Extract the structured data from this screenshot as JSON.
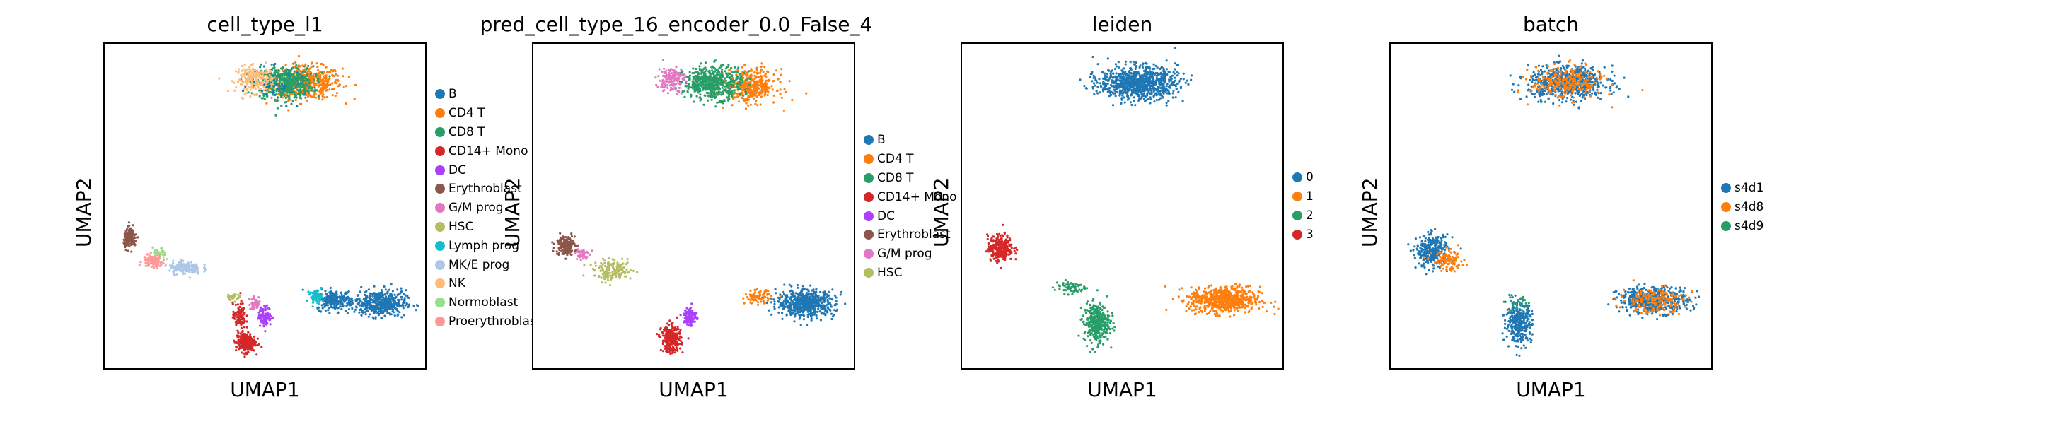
{
  "chart_data": [
    {
      "type": "scatter",
      "title": "cell_type_l1",
      "xlabel": "UMAP1",
      "ylabel": "UMAP2",
      "grid": false,
      "legend": "right",
      "categories": [
        {
          "name": "B",
          "color": "#1f77b4"
        },
        {
          "name": "CD4 T",
          "color": "#ff7f0e"
        },
        {
          "name": "CD8 T",
          "color": "#279e68"
        },
        {
          "name": "CD14+ Mono",
          "color": "#d62728"
        },
        {
          "name": "DC",
          "color": "#aa40fc"
        },
        {
          "name": "Erythroblast",
          "color": "#8c564b"
        },
        {
          "name": "G/M prog",
          "color": "#e377c2"
        },
        {
          "name": "HSC",
          "color": "#b5bd61"
        },
        {
          "name": "Lymph prog",
          "color": "#17becf"
        },
        {
          "name": "MK/E prog",
          "color": "#aec7e8"
        },
        {
          "name": "NK",
          "color": "#ffbb78"
        },
        {
          "name": "Normoblast",
          "color": "#98df8a"
        },
        {
          "name": "Proerythroblast",
          "color": "#ff9896"
        }
      ],
      "clusters": [
        {
          "category": "CD4 T",
          "x": 0.63,
          "y": 0.88,
          "sx": 0.11,
          "sy": 0.05,
          "n": 500
        },
        {
          "category": "CD8 T",
          "x": 0.56,
          "y": 0.88,
          "sx": 0.09,
          "sy": 0.05,
          "n": 520
        },
        {
          "category": "NK",
          "x": 0.47,
          "y": 0.89,
          "sx": 0.06,
          "sy": 0.04,
          "n": 220
        },
        {
          "category": "B",
          "x": 0.55,
          "y": 0.87,
          "sx": 0.09,
          "sy": 0.05,
          "n": 40
        },
        {
          "category": "B",
          "x": 0.86,
          "y": 0.2,
          "sx": 0.08,
          "sy": 0.04,
          "n": 450
        },
        {
          "category": "B",
          "x": 0.72,
          "y": 0.21,
          "sx": 0.06,
          "sy": 0.03,
          "n": 230
        },
        {
          "category": "Lymph prog",
          "x": 0.66,
          "y": 0.22,
          "sx": 0.02,
          "sy": 0.02,
          "n": 60
        },
        {
          "category": "CD14+ Mono",
          "x": 0.44,
          "y": 0.08,
          "sx": 0.03,
          "sy": 0.03,
          "n": 250
        },
        {
          "category": "CD14+ Mono",
          "x": 0.42,
          "y": 0.16,
          "sx": 0.02,
          "sy": 0.04,
          "n": 90
        },
        {
          "category": "DC",
          "x": 0.5,
          "y": 0.16,
          "sx": 0.02,
          "sy": 0.03,
          "n": 120
        },
        {
          "category": "G/M prog",
          "x": 0.47,
          "y": 0.2,
          "sx": 0.02,
          "sy": 0.02,
          "n": 40
        },
        {
          "category": "HSC",
          "x": 0.4,
          "y": 0.22,
          "sx": 0.02,
          "sy": 0.01,
          "n": 30
        },
        {
          "category": "MK/E prog",
          "x": 0.25,
          "y": 0.31,
          "sx": 0.05,
          "sy": 0.02,
          "n": 150
        },
        {
          "category": "Normoblast",
          "x": 0.17,
          "y": 0.35,
          "sx": 0.02,
          "sy": 0.02,
          "n": 40
        },
        {
          "category": "Erythroblast",
          "x": 0.08,
          "y": 0.4,
          "sx": 0.02,
          "sy": 0.03,
          "n": 140
        },
        {
          "category": "Proerythroblast",
          "x": 0.15,
          "y": 0.33,
          "sx": 0.03,
          "sy": 0.02,
          "n": 120
        }
      ]
    },
    {
      "type": "scatter",
      "title": "pred_cell_type_16_encoder_0.0_False_4",
      "xlabel": "UMAP1",
      "ylabel": "UMAP2",
      "grid": false,
      "legend": "right",
      "categories": [
        {
          "name": "B",
          "color": "#1f77b4"
        },
        {
          "name": "CD4 T",
          "color": "#ff7f0e"
        },
        {
          "name": "CD8 T",
          "color": "#279e68"
        },
        {
          "name": "CD14+ Mono",
          "color": "#d62728"
        },
        {
          "name": "DC",
          "color": "#aa40fc"
        },
        {
          "name": "Erythroblast",
          "color": "#8c564b"
        },
        {
          "name": "G/M prog",
          "color": "#e377c2"
        },
        {
          "name": "HSC",
          "color": "#b5bd61"
        }
      ],
      "clusters": [
        {
          "category": "CD4 T",
          "x": 0.68,
          "y": 0.87,
          "sx": 0.08,
          "sy": 0.05,
          "n": 380
        },
        {
          "category": "CD8 T",
          "x": 0.56,
          "y": 0.88,
          "sx": 0.09,
          "sy": 0.05,
          "n": 520
        },
        {
          "category": "G/M prog",
          "x": 0.43,
          "y": 0.89,
          "sx": 0.04,
          "sy": 0.04,
          "n": 150
        },
        {
          "category": "B",
          "x": 0.85,
          "y": 0.2,
          "sx": 0.09,
          "sy": 0.04,
          "n": 600
        },
        {
          "category": "CD4 T",
          "x": 0.7,
          "y": 0.22,
          "sx": 0.04,
          "sy": 0.02,
          "n": 80
        },
        {
          "category": "CD14+ Mono",
          "x": 0.43,
          "y": 0.09,
          "sx": 0.03,
          "sy": 0.04,
          "n": 300
        },
        {
          "category": "DC",
          "x": 0.49,
          "y": 0.16,
          "sx": 0.02,
          "sy": 0.03,
          "n": 110
        },
        {
          "category": "HSC",
          "x": 0.25,
          "y": 0.3,
          "sx": 0.06,
          "sy": 0.03,
          "n": 160
        },
        {
          "category": "Erythroblast",
          "x": 0.1,
          "y": 0.38,
          "sx": 0.03,
          "sy": 0.03,
          "n": 180
        },
        {
          "category": "G/M prog",
          "x": 0.15,
          "y": 0.35,
          "sx": 0.02,
          "sy": 0.02,
          "n": 50
        }
      ]
    },
    {
      "type": "scatter",
      "title": "leiden",
      "xlabel": "UMAP1",
      "ylabel": "UMAP2",
      "grid": false,
      "legend": "right",
      "categories": [
        {
          "name": "0",
          "color": "#1f77b4"
        },
        {
          "name": "1",
          "color": "#ff7f0e"
        },
        {
          "name": "2",
          "color": "#279e68"
        },
        {
          "name": "3",
          "color": "#d62728"
        }
      ],
      "clusters": [
        {
          "category": "0",
          "x": 0.55,
          "y": 0.88,
          "sx": 0.12,
          "sy": 0.05,
          "n": 900
        },
        {
          "category": "1",
          "x": 0.82,
          "y": 0.21,
          "sx": 0.11,
          "sy": 0.04,
          "n": 650
        },
        {
          "category": "2",
          "x": 0.42,
          "y": 0.14,
          "sx": 0.04,
          "sy": 0.06,
          "n": 350
        },
        {
          "category": "2",
          "x": 0.34,
          "y": 0.25,
          "sx": 0.05,
          "sy": 0.02,
          "n": 60
        },
        {
          "category": "3",
          "x": 0.12,
          "y": 0.37,
          "sx": 0.04,
          "sy": 0.04,
          "n": 280
        }
      ]
    },
    {
      "type": "scatter",
      "title": "batch",
      "xlabel": "UMAP1",
      "ylabel": "UMAP2",
      "grid": false,
      "legend": "right",
      "categories": [
        {
          "name": "s4d1",
          "color": "#1f77b4"
        },
        {
          "name": "s4d8",
          "color": "#ff7f0e"
        },
        {
          "name": "s4d9",
          "color": "#279e68"
        }
      ],
      "clusters": [
        {
          "category": "s4d1",
          "x": 0.55,
          "y": 0.88,
          "sx": 0.12,
          "sy": 0.05,
          "n": 650
        },
        {
          "category": "s4d8",
          "x": 0.55,
          "y": 0.88,
          "sx": 0.11,
          "sy": 0.05,
          "n": 260
        },
        {
          "category": "s4d1",
          "x": 0.82,
          "y": 0.21,
          "sx": 0.11,
          "sy": 0.04,
          "n": 480
        },
        {
          "category": "s4d8",
          "x": 0.82,
          "y": 0.21,
          "sx": 0.1,
          "sy": 0.04,
          "n": 180
        },
        {
          "category": "s4d1",
          "x": 0.4,
          "y": 0.14,
          "sx": 0.04,
          "sy": 0.06,
          "n": 330
        },
        {
          "category": "s4d1",
          "x": 0.13,
          "y": 0.36,
          "sx": 0.05,
          "sy": 0.05,
          "n": 300
        },
        {
          "category": "s4d8",
          "x": 0.18,
          "y": 0.33,
          "sx": 0.05,
          "sy": 0.03,
          "n": 100
        },
        {
          "category": "s4d9",
          "x": 0.4,
          "y": 0.2,
          "sx": 0.04,
          "sy": 0.03,
          "n": 25
        }
      ]
    }
  ]
}
